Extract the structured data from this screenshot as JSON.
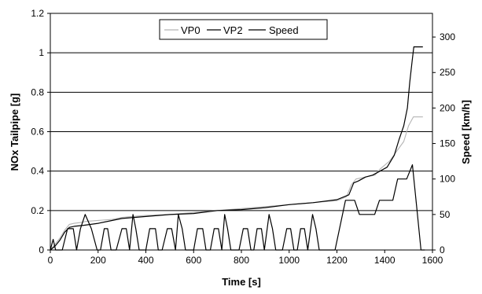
{
  "chart_data": {
    "type": "line",
    "xlabel": "Time [s]",
    "ylabel": "NOx Tailpipe [g]",
    "y2label": "Speed [km/h]",
    "xlim": [
      0,
      1600
    ],
    "ylim": [
      0,
      1.2
    ],
    "y2lim": [
      0,
      333.3333
    ],
    "x_ticks": [
      "0",
      "200",
      "400",
      "600",
      "800",
      "1000",
      "1200",
      "1400",
      "1600"
    ],
    "y_ticks": [
      "0",
      "0.2",
      "0.4",
      "0.6",
      "0.8",
      "1",
      "1.2"
    ],
    "y2_ticks": [
      "0",
      "50",
      "100",
      "150",
      "200",
      "250",
      "300"
    ],
    "grid": "horizontal",
    "legend_position": "top-center",
    "series": [
      {
        "name": "VP0",
        "color": "#b4b4b4",
        "axis": "left",
        "points": [
          [
            0,
            0
          ],
          [
            20,
            0.03
          ],
          [
            40,
            0.06
          ],
          [
            60,
            0.1
          ],
          [
            80,
            0.13
          ],
          [
            100,
            0.135
          ],
          [
            130,
            0.14
          ],
          [
            150,
            0.145
          ],
          [
            200,
            0.15
          ],
          [
            260,
            0.155
          ],
          [
            300,
            0.165
          ],
          [
            340,
            0.17
          ],
          [
            400,
            0.175
          ],
          [
            500,
            0.18
          ],
          [
            600,
            0.19
          ],
          [
            700,
            0.2
          ],
          [
            800,
            0.21
          ],
          [
            900,
            0.22
          ],
          [
            1000,
            0.23
          ],
          [
            1100,
            0.24
          ],
          [
            1150,
            0.245
          ],
          [
            1200,
            0.25
          ],
          [
            1240,
            0.27
          ],
          [
            1260,
            0.33
          ],
          [
            1280,
            0.36
          ],
          [
            1320,
            0.37
          ],
          [
            1360,
            0.38
          ],
          [
            1380,
            0.41
          ],
          [
            1420,
            0.45
          ],
          [
            1450,
            0.5
          ],
          [
            1480,
            0.55
          ],
          [
            1500,
            0.63
          ],
          [
            1520,
            0.675
          ],
          [
            1540,
            0.675
          ],
          [
            1560,
            0.675
          ]
        ]
      },
      {
        "name": "VP2",
        "color": "#000000",
        "axis": "left",
        "points": [
          [
            0,
            0
          ],
          [
            20,
            0.02
          ],
          [
            40,
            0.05
          ],
          [
            60,
            0.09
          ],
          [
            80,
            0.115
          ],
          [
            100,
            0.12
          ],
          [
            140,
            0.125
          ],
          [
            200,
            0.135
          ],
          [
            260,
            0.15
          ],
          [
            300,
            0.16
          ],
          [
            350,
            0.165
          ],
          [
            400,
            0.17
          ],
          [
            500,
            0.18
          ],
          [
            600,
            0.185
          ],
          [
            700,
            0.2
          ],
          [
            800,
            0.205
          ],
          [
            900,
            0.215
          ],
          [
            1000,
            0.23
          ],
          [
            1100,
            0.24
          ],
          [
            1200,
            0.255
          ],
          [
            1250,
            0.28
          ],
          [
            1270,
            0.34
          ],
          [
            1290,
            0.35
          ],
          [
            1320,
            0.37
          ],
          [
            1350,
            0.38
          ],
          [
            1380,
            0.4
          ],
          [
            1410,
            0.42
          ],
          [
            1440,
            0.48
          ],
          [
            1460,
            0.56
          ],
          [
            1480,
            0.63
          ],
          [
            1495,
            0.72
          ],
          [
            1505,
            0.85
          ],
          [
            1515,
            0.96
          ],
          [
            1522,
            1.03
          ],
          [
            1540,
            1.03
          ],
          [
            1560,
            1.03
          ]
        ]
      },
      {
        "name": "Speed",
        "color": "#000000",
        "axis": "right",
        "points": [
          [
            0,
            0
          ],
          [
            12,
            15
          ],
          [
            22,
            0
          ],
          [
            50,
            0
          ],
          [
            72,
            30
          ],
          [
            96,
            30
          ],
          [
            110,
            0
          ],
          [
            126,
            30
          ],
          [
            146,
            50
          ],
          [
            172,
            30
          ],
          [
            196,
            0
          ],
          [
            210,
            0
          ],
          [
            226,
            30
          ],
          [
            240,
            30
          ],
          [
            254,
            0
          ],
          [
            276,
            0
          ],
          [
            300,
            30
          ],
          [
            318,
            30
          ],
          [
            332,
            0
          ],
          [
            346,
            50
          ],
          [
            358,
            30
          ],
          [
            372,
            0
          ],
          [
            400,
            0
          ],
          [
            416,
            30
          ],
          [
            440,
            30
          ],
          [
            452,
            0
          ],
          [
            468,
            0
          ],
          [
            490,
            30
          ],
          [
            508,
            30
          ],
          [
            524,
            0
          ],
          [
            536,
            50
          ],
          [
            552,
            30
          ],
          [
            566,
            0
          ],
          [
            600,
            0
          ],
          [
            616,
            30
          ],
          [
            638,
            30
          ],
          [
            652,
            0
          ],
          [
            670,
            0
          ],
          [
            686,
            30
          ],
          [
            704,
            30
          ],
          [
            718,
            0
          ],
          [
            730,
            50
          ],
          [
            742,
            30
          ],
          [
            756,
            0
          ],
          [
            790,
            0
          ],
          [
            808,
            30
          ],
          [
            826,
            30
          ],
          [
            840,
            0
          ],
          [
            852,
            0
          ],
          [
            866,
            30
          ],
          [
            884,
            30
          ],
          [
            896,
            0
          ],
          [
            916,
            50
          ],
          [
            930,
            30
          ],
          [
            944,
            0
          ],
          [
            972,
            0
          ],
          [
            990,
            30
          ],
          [
            1006,
            30
          ],
          [
            1020,
            0
          ],
          [
            1034,
            0
          ],
          [
            1048,
            30
          ],
          [
            1064,
            30
          ],
          [
            1078,
            0
          ],
          [
            1098,
            50
          ],
          [
            1112,
            30
          ],
          [
            1126,
            0
          ],
          [
            1180,
            0
          ],
          [
            1192,
            0
          ],
          [
            1236,
            70
          ],
          [
            1274,
            70
          ],
          [
            1294,
            50
          ],
          [
            1358,
            50
          ],
          [
            1378,
            70
          ],
          [
            1434,
            70
          ],
          [
            1454,
            100
          ],
          [
            1492,
            100
          ],
          [
            1516,
            120
          ],
          [
            1534,
            60
          ],
          [
            1552,
            0
          ],
          [
            1568,
            0
          ]
        ]
      }
    ]
  }
}
